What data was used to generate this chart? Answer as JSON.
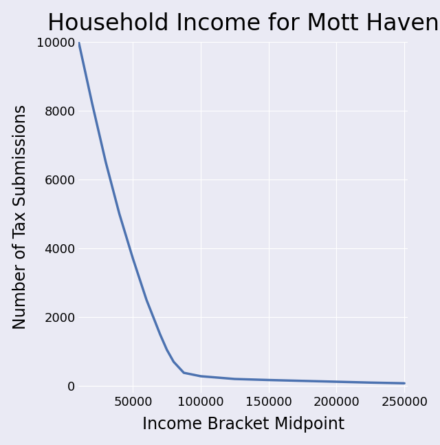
{
  "title": "Household Income for Mott Haven",
  "xlabel": "Income Bracket Midpoint",
  "ylabel": "Number of Tax Submissions",
  "x_values": [
    10000,
    20000,
    30000,
    40000,
    50000,
    60000,
    70000,
    75000,
    80000,
    87500,
    100000,
    125000,
    150000,
    175000,
    200000,
    225000,
    250000
  ],
  "y_values": [
    10000,
    8200,
    6500,
    5000,
    3700,
    2500,
    1500,
    1050,
    700,
    380,
    280,
    200,
    170,
    145,
    120,
    95,
    75
  ],
  "line_color": "#4c72b0",
  "background_color": "#eaeaf4",
  "grid_color": "#ffffff",
  "xlim": [
    10000,
    252500
  ],
  "ylim": [
    -200,
    10000
  ],
  "title_fontsize": 24,
  "label_fontsize": 17,
  "tick_fontsize": 13,
  "line_width": 2.5
}
